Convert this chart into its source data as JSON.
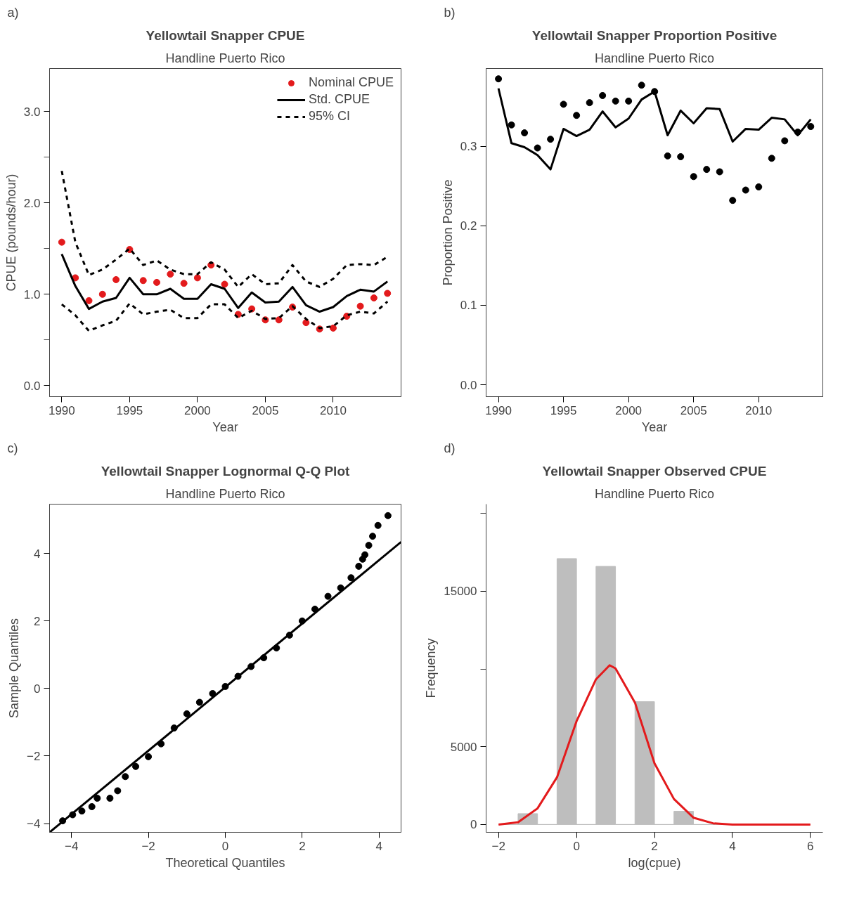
{
  "chart_data": [
    {
      "type": "line",
      "annotations": [
        "a)"
      ],
      "title": "Yellowtail Snapper CPUE",
      "subtitle": "Handline Puerto Rico",
      "xlabel": "Year",
      "ylabel": "CPUE (pounds/hour)",
      "x": [
        1990,
        1991,
        1992,
        1993,
        1994,
        1995,
        1996,
        1997,
        1998,
        1999,
        2000,
        2001,
        2002,
        2003,
        2004,
        2005,
        2006,
        2007,
        2008,
        2009,
        2010,
        2011,
        2012,
        2013,
        2014
      ],
      "series": [
        {
          "name": "Nominal CPUE",
          "type": "scatter",
          "marker": "circle",
          "color": "#e31a1c",
          "values": [
            1.57,
            1.18,
            0.93,
            1.0,
            1.16,
            1.49,
            1.15,
            1.13,
            1.22,
            1.12,
            1.18,
            1.32,
            1.11,
            0.78,
            0.84,
            0.72,
            0.72,
            0.86,
            0.69,
            0.62,
            0.63,
            0.76,
            0.87,
            0.96,
            1.01
          ]
        },
        {
          "name": "Std. CPUE",
          "type": "line",
          "line_style": "solid",
          "color": "#000000",
          "values": [
            1.44,
            1.09,
            0.84,
            0.92,
            0.96,
            1.18,
            1.0,
            1.0,
            1.06,
            0.95,
            0.95,
            1.11,
            1.06,
            0.85,
            1.02,
            0.91,
            0.92,
            1.08,
            0.88,
            0.81,
            0.86,
            0.98,
            1.05,
            1.03,
            1.14
          ]
        },
        {
          "name": "95% CI",
          "type": "line",
          "line_style": "dashed",
          "color": "#000000",
          "values": [
            2.35,
            1.57,
            1.21,
            1.27,
            1.38,
            1.5,
            1.32,
            1.37,
            1.27,
            1.22,
            1.22,
            1.35,
            1.27,
            1.08,
            1.22,
            1.11,
            1.12,
            1.32,
            1.14,
            1.08,
            1.17,
            1.32,
            1.33,
            1.32,
            1.41
          ]
        },
        {
          "type": "line",
          "line_style": "dashed",
          "color": "#000000",
          "values": [
            0.89,
            0.77,
            0.6,
            0.66,
            0.71,
            0.9,
            0.78,
            0.81,
            0.83,
            0.74,
            0.74,
            0.89,
            0.89,
            0.74,
            0.82,
            0.73,
            0.74,
            0.87,
            0.73,
            0.63,
            0.65,
            0.77,
            0.81,
            0.79,
            0.92
          ]
        }
      ],
      "xlim": [
        1989.1,
        2015.0
      ],
      "ylim": [
        -0.12,
        3.47
      ],
      "xticks": [
        1990,
        1995,
        2000,
        2005,
        2010
      ],
      "yticks": [
        {
          "value": 0,
          "label": "0.0"
        },
        {
          "value": 0.5,
          "label": null
        },
        {
          "value": 1,
          "label": "1.0"
        },
        {
          "value": 1.5,
          "label": null
        },
        {
          "value": 2,
          "label": "2.0"
        },
        {
          "value": 2.5,
          "label": null
        },
        {
          "value": 3,
          "label": "3.0"
        }
      ],
      "legend": "top right"
    },
    {
      "type": "line",
      "annotations": [
        "b)"
      ],
      "title": "Yellowtail Snapper Proportion Positive",
      "subtitle": "Handline Puerto Rico",
      "xlabel": "Year",
      "ylabel": "Proportion Positive",
      "x": [
        1990,
        1991,
        1992,
        1993,
        1994,
        1995,
        1996,
        1997,
        1998,
        1999,
        2000,
        2001,
        2002,
        2003,
        2004,
        2005,
        2006,
        2007,
        2008,
        2009,
        2010,
        2011,
        2012,
        2013,
        2014
      ],
      "series": [
        {
          "type": "scatter",
          "marker": "circle",
          "color": "#000000",
          "values": [
            0.385,
            0.327,
            0.317,
            0.298,
            0.309,
            0.353,
            0.339,
            0.355,
            0.364,
            0.357,
            0.357,
            0.377,
            0.369,
            0.288,
            0.287,
            0.262,
            0.271,
            0.268,
            0.232,
            0.245,
            0.249,
            0.285,
            0.307,
            0.318,
            0.325
          ]
        },
        {
          "type": "line",
          "line_style": "solid",
          "color": "#000000",
          "values": [
            0.373,
            0.304,
            0.299,
            0.289,
            0.271,
            0.322,
            0.313,
            0.321,
            0.344,
            0.324,
            0.335,
            0.359,
            0.369,
            0.314,
            0.345,
            0.329,
            0.348,
            0.347,
            0.306,
            0.322,
            0.321,
            0.336,
            0.334,
            0.314,
            0.334
          ]
        }
      ],
      "xlim": [
        1989.05,
        2014.93
      ],
      "ylim": [
        -0.015,
        0.398
      ],
      "xticks": [
        1990,
        1995,
        2000,
        2005,
        2010
      ],
      "yticks": [
        {
          "value": 0,
          "label": "0.0"
        },
        0.1,
        0.2,
        0.3
      ]
    },
    {
      "type": "scatter",
      "annotations": [
        "c)"
      ],
      "title": "Yellowtail Snapper Lognormal Q-Q Plot",
      "subtitle": "Handline Puerto Rico",
      "xlabel": "Theoretical Quantiles",
      "ylabel": "Sample Quantiles",
      "series": [
        {
          "type": "scatter",
          "marker": "circle",
          "color": "#000000",
          "x": [
            -4.23,
            -3.97,
            -3.73,
            -3.47,
            -3.33,
            -3.0,
            -2.8,
            -2.6,
            -2.33,
            -2.0,
            -1.67,
            -1.33,
            -1.0,
            -0.67,
            -0.33,
            0,
            0.33,
            0.67,
            1.0,
            1.33,
            1.67,
            2.0,
            2.33,
            2.67,
            3.0,
            3.27,
            3.47,
            3.57,
            3.63,
            3.73,
            3.83,
            3.97,
            4.23
          ],
          "values": [
            -3.92,
            -3.74,
            -3.63,
            -3.5,
            -3.25,
            -3.25,
            -3.03,
            -2.61,
            -2.31,
            -2.02,
            -1.64,
            -1.17,
            -0.75,
            -0.41,
            -0.15,
            0.06,
            0.36,
            0.65,
            0.91,
            1.2,
            1.58,
            2.0,
            2.35,
            2.73,
            2.98,
            3.28,
            3.62,
            3.83,
            3.96,
            4.24,
            4.51,
            4.83,
            5.12
          ]
        },
        {
          "type": "line",
          "line_style": "solid",
          "color": "#000000",
          "x": [
            -4.57,
            4.57
          ],
          "values": [
            -4.26,
            4.34
          ]
        }
      ],
      "xlim": [
        -4.57,
        4.57
      ],
      "ylim": [
        -4.26,
        5.46
      ],
      "xticks": [
        -4,
        -2,
        0,
        2,
        4
      ],
      "yticks": [
        -4,
        -2,
        0,
        2,
        4
      ]
    },
    {
      "type": "histogram",
      "annotations": [
        "d)"
      ],
      "title": "Yellowtail Snapper Observed CPUE",
      "subtitle": "Handline Puerto Rico",
      "xlabel": "log(cpue)",
      "ylabel": "Frequency",
      "bins": [
        -2,
        -1.5,
        -1,
        -0.5,
        0,
        0.5,
        1,
        1.5,
        2,
        2.5,
        3,
        3.5,
        4,
        4.5,
        5,
        5.5,
        6
      ],
      "series": [
        {
          "type": "histogram",
          "color": "#bebebe",
          "values": [
            0,
            700,
            0,
            17100,
            0,
            16600,
            0,
            7900,
            0,
            850,
            0,
            0,
            0,
            0,
            0,
            0
          ]
        },
        {
          "type": "line",
          "line_style": "solid",
          "color": "#e31a1c",
          "x": [
            -2,
            -1.5,
            -1,
            -0.5,
            0,
            0.5,
            0.85,
            1.0,
            1.5,
            2,
            2.5,
            3,
            3.5,
            4,
            5,
            6
          ],
          "values": [
            0,
            140,
            1040,
            3040,
            6640,
            9340,
            10240,
            10040,
            7840,
            3940,
            1640,
            440,
            80,
            0,
            0,
            0
          ]
        }
      ],
      "xlim": [
        -2.32,
        6.32
      ],
      "ylim": [
        -500,
        20600
      ],
      "xticks": [
        -2,
        0,
        2,
        4,
        6
      ],
      "yticks": [
        0,
        5000,
        {
          "value": 10000,
          "label": null
        },
        15000,
        {
          "value": 20000,
          "label": null
        }
      ]
    }
  ]
}
